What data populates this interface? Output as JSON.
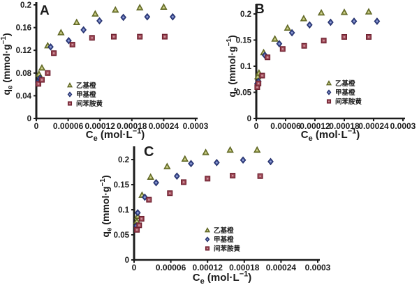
{
  "figure": {
    "background": "#ffffff",
    "axis_color": "#1c1c1c",
    "text_color": "#1c1c1c"
  },
  "chart_data": [
    {
      "type": "scatter",
      "panel_label": "A",
      "xlabel": "Ce (mol·L−1)",
      "ylabel": "qe (mmol·g−1)",
      "xlabel_parts": [
        {
          "t": "C"
        },
        {
          "t": "e",
          "s": "sub"
        },
        {
          "t": " (mol·L"
        },
        {
          "t": "−1",
          "s": "sup"
        },
        {
          "t": ")"
        }
      ],
      "ylabel_parts": [
        {
          "t": "q"
        },
        {
          "t": "e",
          "s": "sub"
        },
        {
          "t": " (mmol·g"
        },
        {
          "t": "−1",
          "s": "sup"
        },
        {
          "t": ")"
        }
      ],
      "xlim": [
        0,
        0.0003
      ],
      "ylim": [
        0,
        0.2
      ],
      "xtick_values": [
        0,
        6e-05,
        0.00012,
        0.00018,
        0.00024,
        0.0003
      ],
      "xtick_labels": [
        "0",
        "0.00006",
        "0.00012",
        "0.00018",
        "0.00024",
        "0.0003"
      ],
      "ytick_values": [
        0,
        0.04,
        0.08,
        0.12,
        0.16,
        0.2
      ],
      "ytick_labels": [
        "0",
        "0.04",
        "0.08",
        "0.12",
        "0.16",
        "0.2"
      ],
      "grid": false,
      "legend_position": "inside-bottom-center",
      "series": [
        {
          "name": "乙基橙",
          "marker": "triangle",
          "fill": "#9aa04e",
          "stroke": "#5c6322",
          "inner": "#cdd093",
          "points": [
            [
              5e-06,
              0.078
            ],
            [
              1.05e-05,
              0.089
            ],
            [
              2.15e-05,
              0.128
            ],
            [
              4.65e-05,
              0.151
            ],
            [
              7.6e-05,
              0.169
            ],
            [
              0.000111,
              0.184
            ],
            [
              0.000149,
              0.191
            ],
            [
              0.000195,
              0.195
            ],
            [
              0.00024,
              0.196
            ]
          ]
        },
        {
          "name": "甲基橙",
          "marker": "diamond",
          "fill": "#4657a0",
          "stroke": "#25316b",
          "inner": "#97a3d4",
          "points": [
            [
              3e-06,
              0.064
            ],
            [
              7e-06,
              0.071
            ],
            [
              2.7e-05,
              0.126
            ],
            [
              6.1e-05,
              0.137
            ],
            [
              8.9e-05,
              0.156
            ],
            [
              0.000119,
              0.172
            ],
            [
              0.000164,
              0.178
            ],
            [
              0.000209,
              0.179
            ],
            [
              0.000257,
              0.179
            ]
          ]
        },
        {
          "name": "间苯胺黄",
          "marker": "square",
          "fill": "#a04a58",
          "stroke": "#6e2130",
          "inner": "#cc97a0",
          "points": [
            [
              4e-06,
              0.061
            ],
            [
              1.05e-05,
              0.068
            ],
            [
              2.15e-05,
              0.08
            ],
            [
              3.3e-05,
              0.115
            ],
            [
              6.8e-05,
              0.13
            ],
            [
              0.000105,
              0.142
            ],
            [
              0.000146,
              0.144
            ],
            [
              0.000195,
              0.144
            ],
            [
              0.000242,
              0.144
            ]
          ]
        }
      ]
    },
    {
      "type": "scatter",
      "panel_label": "B",
      "xlabel": "Ce (mol·L−1)",
      "ylabel": "qe (mmol·g−1)",
      "xlabel_parts": [
        {
          "t": "C"
        },
        {
          "t": "e",
          "s": "sub"
        },
        {
          "t": " (mol·L"
        },
        {
          "t": "−1",
          "s": "sup"
        },
        {
          "t": ")"
        }
      ],
      "ylabel_parts": [
        {
          "t": "q"
        },
        {
          "t": "e",
          "s": "sub"
        },
        {
          "t": " (mmol·g"
        },
        {
          "t": "−1",
          "s": "sup"
        },
        {
          "t": ")"
        }
      ],
      "xlim": [
        0,
        0.0003
      ],
      "ylim": [
        0,
        0.2
      ],
      "xtick_values": [
        0,
        6e-05,
        0.00012,
        0.00018,
        0.00024,
        0.0003
      ],
      "xtick_labels": [
        "0",
        "0.00006",
        "0.00012",
        "0.00018",
        "0.00024",
        "0.0003"
      ],
      "ytick_values": [
        0,
        0.05,
        0.1,
        0.15,
        0.2
      ],
      "ytick_labels": [
        "0",
        "0.05",
        "0.1",
        "0.15",
        "0.2"
      ],
      "grid": false,
      "legend_position": "inside-bottom-center",
      "series": [
        {
          "name": "乙基橙",
          "marker": "triangle",
          "fill": "#9aa04e",
          "stroke": "#5c6322",
          "inner": "#cdd093",
          "points": [
            [
              3e-06,
              0.08
            ],
            [
              5.5e-06,
              0.087
            ],
            [
              1.5e-05,
              0.126
            ],
            [
              3.8e-05,
              0.152
            ],
            [
              6.4e-05,
              0.173
            ],
            [
              9.7e-05,
              0.191
            ],
            [
              0.000133,
              0.202
            ],
            [
              0.00018,
              0.203
            ],
            [
              0.00023,
              0.204
            ]
          ]
        },
        {
          "name": "甲基橙",
          "marker": "diamond",
          "fill": "#4657a0",
          "stroke": "#25316b",
          "inner": "#97a3d4",
          "points": [
            [
              2e-06,
              0.067
            ],
            [
              4.5e-06,
              0.071
            ],
            [
              1.75e-05,
              0.121
            ],
            [
              4.7e-05,
              0.143
            ],
            [
              7.3e-05,
              0.164
            ],
            [
              0.000109,
              0.179
            ],
            [
              0.000152,
              0.184
            ],
            [
              0.0002,
              0.186
            ],
            [
              0.000247,
              0.186
            ]
          ]
        },
        {
          "name": "间苯胺黄",
          "marker": "square",
          "fill": "#a04a58",
          "stroke": "#6e2130",
          "inner": "#cc97a0",
          "points": [
            [
              2e-06,
              0.06
            ],
            [
              4.5e-06,
              0.067
            ],
            [
              1.2e-05,
              0.082
            ],
            [
              2.3e-05,
              0.117
            ],
            [
              5.4e-05,
              0.133
            ],
            [
              9.8e-05,
              0.139
            ],
            [
              0.000138,
              0.149
            ],
            [
              0.00018,
              0.156
            ],
            [
              0.00023,
              0.156
            ]
          ]
        }
      ]
    },
    {
      "type": "scatter",
      "panel_label": "C",
      "xlabel": "Ce (mol·L−1)",
      "ylabel": "qe (mmol·g−1)",
      "xlabel_parts": [
        {
          "t": "C"
        },
        {
          "t": "e",
          "s": "sub"
        },
        {
          "t": " (mol·L"
        },
        {
          "t": "−1",
          "s": "sup"
        },
        {
          "t": ")"
        }
      ],
      "ylabel_parts": [
        {
          "t": "q"
        },
        {
          "t": "e",
          "s": "sub"
        },
        {
          "t": " (mmol·g"
        },
        {
          "t": "−1",
          "s": "sup"
        },
        {
          "t": ")"
        }
      ],
      "xlim": [
        0,
        0.0003
      ],
      "ylim": [
        0,
        0.2
      ],
      "xtick_values": [
        0,
        6e-05,
        0.00012,
        0.00018,
        0.00024,
        0.0003
      ],
      "xtick_labels": [
        "0",
        "0.00006",
        "0.00012",
        "0.00018",
        "0.00024",
        "0.0003"
      ],
      "ytick_values": [
        0,
        0.05,
        0.1,
        0.15,
        0.2
      ],
      "ytick_labels": [
        "0",
        "0.05",
        "0.1",
        "0.15",
        "0.2"
      ],
      "grid": false,
      "legend_position": "inside-bottom-center",
      "series": [
        {
          "name": "乙基橙",
          "marker": "triangle",
          "fill": "#9aa04e",
          "stroke": "#5c6322",
          "inner": "#cdd093",
          "points": [
            [
              4.6e-06,
              0.077
            ],
            [
              6e-06,
              0.087
            ],
            [
              1.3e-05,
              0.129
            ],
            [
              2.7e-05,
              0.165
            ],
            [
              5.4e-05,
              0.186
            ],
            [
              8.3e-05,
              0.201
            ],
            [
              0.000117,
              0.214
            ],
            [
              0.000157,
              0.219
            ],
            [
              0.000201,
              0.219
            ]
          ]
        },
        {
          "name": "甲基橙",
          "marker": "diamond",
          "fill": "#4657a0",
          "stroke": "#25316b",
          "inner": "#97a3d4",
          "points": [
            [
              4e-06,
              0.068
            ],
            [
              6e-06,
              0.094
            ],
            [
              1.75e-05,
              0.125
            ],
            [
              3.6e-05,
              0.154
            ],
            [
              7e-05,
              0.167
            ],
            [
              9.3e-05,
              0.192
            ],
            [
              0.000135,
              0.194
            ],
            [
              0.000178,
              0.199
            ],
            [
              0.000223,
              0.196
            ]
          ]
        },
        {
          "name": "间苯胺黄",
          "marker": "square",
          "fill": "#a04a58",
          "stroke": "#6e2130",
          "inner": "#cc97a0",
          "points": [
            [
              4.6e-06,
              0.06
            ],
            [
              8.3e-06,
              0.069
            ],
            [
              1.22e-05,
              0.082
            ],
            [
              2.43e-05,
              0.12
            ],
            [
              5.85e-05,
              0.133
            ],
            [
              8.1e-05,
              0.155
            ],
            [
              0.00012,
              0.162
            ],
            [
              0.000161,
              0.168
            ],
            [
              0.000206,
              0.167
            ]
          ]
        }
      ]
    }
  ]
}
